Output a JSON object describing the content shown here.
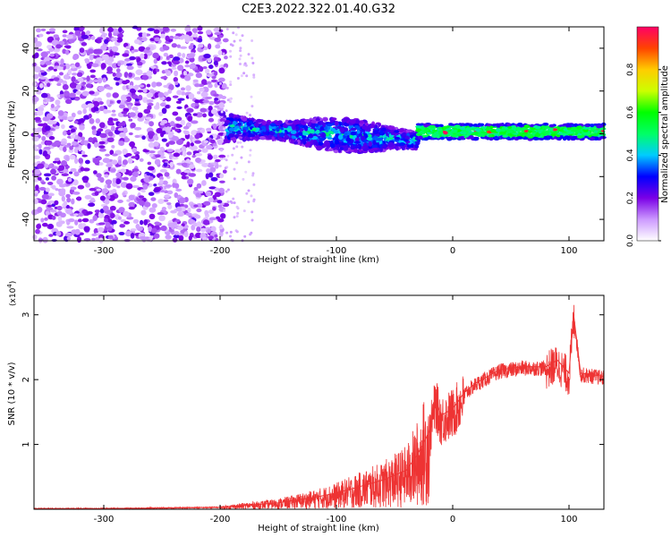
{
  "title": "C2E3.2022.322.01.40.G32",
  "chart_data": [
    {
      "type": "heatmap",
      "title": "C2E3.2022.322.01.40.G32",
      "xlabel": "Height of straight line (km)",
      "ylabel": "Frequency (Hz)",
      "xlim": [
        -360,
        130
      ],
      "ylim": [
        -50,
        50
      ],
      "xticks": [
        -300,
        -200,
        -100,
        0,
        100
      ],
      "yticks": [
        -40,
        -20,
        0,
        20,
        40
      ],
      "colorbar": {
        "label": "Normalized spectral amplitude",
        "range": [
          0,
          1
        ],
        "ticks": [
          "0.0",
          "0.2",
          "0.4",
          "0.6",
          "0.8"
        ],
        "colors": [
          "#ffffff",
          "#cc99ff",
          "#7a00e6",
          "#0000ff",
          "#00ccff",
          "#00ff66",
          "#00ff00",
          "#ccff00",
          "#ffcc00",
          "#ff4400",
          "#ff0066"
        ]
      },
      "regions": [
        {
          "x_range": [
            -360,
            -195
          ],
          "f_range": [
            -50,
            50
          ],
          "amplitude": 0.1
        },
        {
          "x_range": [
            -195,
            -30
          ],
          "f_range": [
            -12,
            12
          ],
          "amplitude": 0.35
        },
        {
          "x_range": [
            -30,
            130
          ],
          "f_range": [
            -3,
            5
          ],
          "amplitude": 0.6
        }
      ]
    },
    {
      "type": "line",
      "xlabel": "Height of straight line (km)",
      "ylabel": "SNR (10 * v/v)",
      "multiplier": "(x10^4)",
      "xlim": [
        -360,
        130
      ],
      "ylim": [
        0,
        3.3
      ],
      "xticks": [
        -300,
        -200,
        -100,
        0,
        100
      ],
      "yticks": [
        1,
        2,
        3
      ],
      "color": "#ee3333",
      "series": [
        {
          "x": [
            -360,
            -300,
            -250,
            -200,
            -180,
            -150,
            -120,
            -100,
            -80,
            -60,
            -40,
            -30,
            -20,
            -15,
            -10,
            0,
            10,
            20,
            30,
            40,
            60,
            80,
            90,
            100,
            104,
            110,
            130
          ],
          "y": [
            0.01,
            0.01,
            0.02,
            0.03,
            0.06,
            0.1,
            0.18,
            0.25,
            0.35,
            0.45,
            0.6,
            0.85,
            1.2,
            1.7,
            1.45,
            1.55,
            1.8,
            1.95,
            2.05,
            2.15,
            2.2,
            2.2,
            2.3,
            2.1,
            3.0,
            2.1,
            2.05
          ]
        }
      ]
    }
  ]
}
